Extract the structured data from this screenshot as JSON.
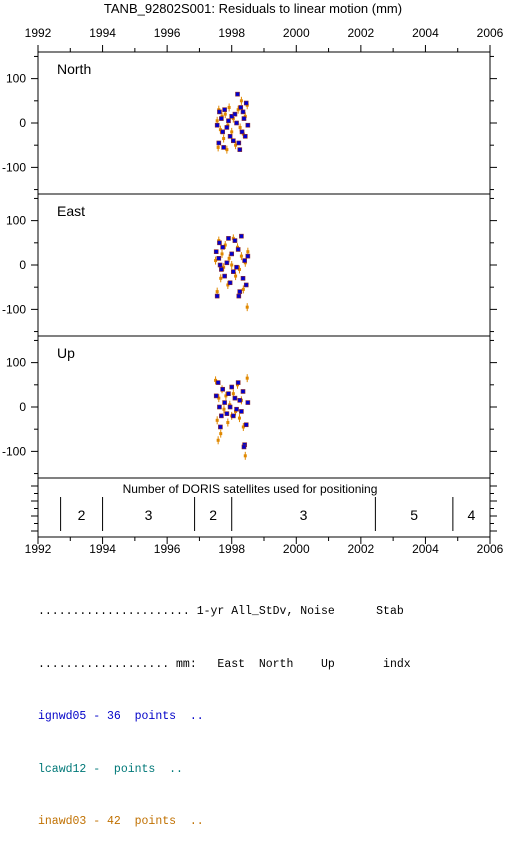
{
  "chart_data": {
    "type": "scatter",
    "title": "TANB_92802S001: Residuals to linear motion (mm)",
    "x_ticks": [
      "1992",
      "1994",
      "1996",
      "1998",
      "2000",
      "2002",
      "2004",
      "2006"
    ],
    "xlim": [
      1992,
      2006
    ],
    "ylim": [
      -160,
      160
    ],
    "y_ticks": [
      "100",
      "0",
      "-100"
    ],
    "panels": [
      {
        "name": "North",
        "blue": [
          [
            1997.55,
            -5
          ],
          [
            1997.62,
            25
          ],
          [
            1997.68,
            10
          ],
          [
            1997.72,
            -20
          ],
          [
            1997.78,
            30
          ],
          [
            1997.85,
            -10
          ],
          [
            1997.9,
            5
          ],
          [
            1997.95,
            -30
          ],
          [
            1998.0,
            15
          ],
          [
            1998.05,
            -40
          ],
          [
            1998.1,
            20
          ],
          [
            1998.15,
            0
          ],
          [
            1998.18,
            65
          ],
          [
            1998.22,
            -45
          ],
          [
            1998.28,
            35
          ],
          [
            1998.32,
            -20
          ],
          [
            1998.38,
            10
          ],
          [
            1998.45,
            45
          ],
          [
            1998.5,
            -5
          ],
          [
            1997.6,
            -45
          ],
          [
            1997.75,
            -55
          ],
          [
            1998.25,
            -60
          ],
          [
            1998.35,
            25
          ],
          [
            1998.42,
            -30
          ]
        ],
        "orange": [
          [
            1997.55,
            5
          ],
          [
            1997.6,
            30
          ],
          [
            1997.65,
            -15
          ],
          [
            1997.7,
            15
          ],
          [
            1997.75,
            -35
          ],
          [
            1997.8,
            20
          ],
          [
            1997.88,
            -5
          ],
          [
            1997.92,
            35
          ],
          [
            1998.0,
            -20
          ],
          [
            1998.05,
            10
          ],
          [
            1998.12,
            -50
          ],
          [
            1998.2,
            30
          ],
          [
            1998.26,
            -10
          ],
          [
            1998.3,
            50
          ],
          [
            1998.36,
            -25
          ],
          [
            1998.42,
            15
          ],
          [
            1998.48,
            40
          ],
          [
            1997.58,
            -55
          ],
          [
            1997.85,
            -60
          ]
        ]
      },
      {
        "name": "East",
        "blue": [
          [
            1997.52,
            30
          ],
          [
            1997.55,
            -70
          ],
          [
            1997.6,
            15
          ],
          [
            1997.62,
            50
          ],
          [
            1997.68,
            -10
          ],
          [
            1997.72,
            40
          ],
          [
            1997.78,
            -25
          ],
          [
            1997.85,
            5
          ],
          [
            1997.9,
            60
          ],
          [
            1997.95,
            -40
          ],
          [
            1998.0,
            25
          ],
          [
            1998.05,
            -15
          ],
          [
            1998.1,
            55
          ],
          [
            1998.15,
            -5
          ],
          [
            1998.2,
            35
          ],
          [
            1998.25,
            -60
          ],
          [
            1998.3,
            65
          ],
          [
            1998.35,
            -30
          ],
          [
            1998.4,
            10
          ],
          [
            1998.45,
            -45
          ],
          [
            1998.5,
            20
          ],
          [
            1997.64,
            0
          ],
          [
            1998.22,
            -70
          ]
        ],
        "orange": [
          [
            1997.5,
            10
          ],
          [
            1997.55,
            -60
          ],
          [
            1997.6,
            55
          ],
          [
            1997.66,
            -30
          ],
          [
            1997.7,
            25
          ],
          [
            1997.75,
            -5
          ],
          [
            1997.8,
            45
          ],
          [
            1997.88,
            -45
          ],
          [
            1997.92,
            15
          ],
          [
            1998.0,
            0
          ],
          [
            1998.05,
            60
          ],
          [
            1998.12,
            -25
          ],
          [
            1998.18,
            40
          ],
          [
            1998.24,
            -10
          ],
          [
            1998.3,
            20
          ],
          [
            1998.36,
            -55
          ],
          [
            1998.42,
            5
          ],
          [
            1998.48,
            -95
          ],
          [
            1998.5,
            30
          ]
        ]
      },
      {
        "name": "Up",
        "blue": [
          [
            1997.52,
            25
          ],
          [
            1997.58,
            55
          ],
          [
            1997.62,
            0
          ],
          [
            1997.68,
            -20
          ],
          [
            1997.72,
            40
          ],
          [
            1997.78,
            10
          ],
          [
            1997.85,
            -15
          ],
          [
            1997.9,
            30
          ],
          [
            1997.95,
            0
          ],
          [
            1998.0,
            45
          ],
          [
            1998.05,
            -20
          ],
          [
            1998.1,
            20
          ],
          [
            1998.15,
            -5
          ],
          [
            1998.2,
            55
          ],
          [
            1998.25,
            15
          ],
          [
            1998.3,
            -10
          ],
          [
            1998.35,
            35
          ],
          [
            1998.4,
            -85
          ],
          [
            1998.45,
            -40
          ],
          [
            1998.5,
            10
          ],
          [
            1997.65,
            -45
          ],
          [
            1998.38,
            -90
          ]
        ],
        "orange": [
          [
            1997.5,
            60
          ],
          [
            1997.55,
            -30
          ],
          [
            1997.6,
            20
          ],
          [
            1997.66,
            -60
          ],
          [
            1997.7,
            40
          ],
          [
            1997.76,
            -5
          ],
          [
            1997.82,
            25
          ],
          [
            1997.88,
            -35
          ],
          [
            1997.94,
            5
          ],
          [
            1998.0,
            -20
          ],
          [
            1998.05,
            30
          ],
          [
            1998.12,
            -10
          ],
          [
            1998.18,
            50
          ],
          [
            1998.24,
            -25
          ],
          [
            1998.3,
            15
          ],
          [
            1998.36,
            -45
          ],
          [
            1998.42,
            -110
          ],
          [
            1998.48,
            65
          ],
          [
            1997.58,
            -75
          ]
        ]
      }
    ],
    "satellites": {
      "title": "Number of DORIS satellites used for positioning",
      "boundaries": [
        1992.7,
        1994.0,
        1996.85,
        1998.0,
        2002.45,
        2004.85
      ],
      "segments": [
        {
          "label": "2",
          "from": 1992.7,
          "to": 1994.0
        },
        {
          "label": "3",
          "from": 1994.0,
          "to": 1996.85
        },
        {
          "label": "2",
          "from": 1996.85,
          "to": 1998.0
        },
        {
          "label": "3",
          "from": 1998.0,
          "to": 2002.45
        },
        {
          "label": "5",
          "from": 2002.45,
          "to": 2004.85
        },
        {
          "label": "4",
          "from": 2004.85,
          "to": 2006.0
        }
      ]
    },
    "colors": {
      "blue": "#0000d0",
      "orange": "#e08800",
      "edge": "#8a2a2a"
    }
  },
  "legend": {
    "line1": "...................... 1-yr All_StDv, Noise      Stab",
    "line2": "................... mm:   East  North    Up       indx",
    "series": [
      {
        "text": "ignwd05 - 36  points  ..",
        "cls": "s1"
      },
      {
        "text": "lcawd12 -  points  ..",
        "cls": "s2"
      },
      {
        "text": "inawd03 - 42  points  ..",
        "cls": "s3"
      }
    ]
  }
}
